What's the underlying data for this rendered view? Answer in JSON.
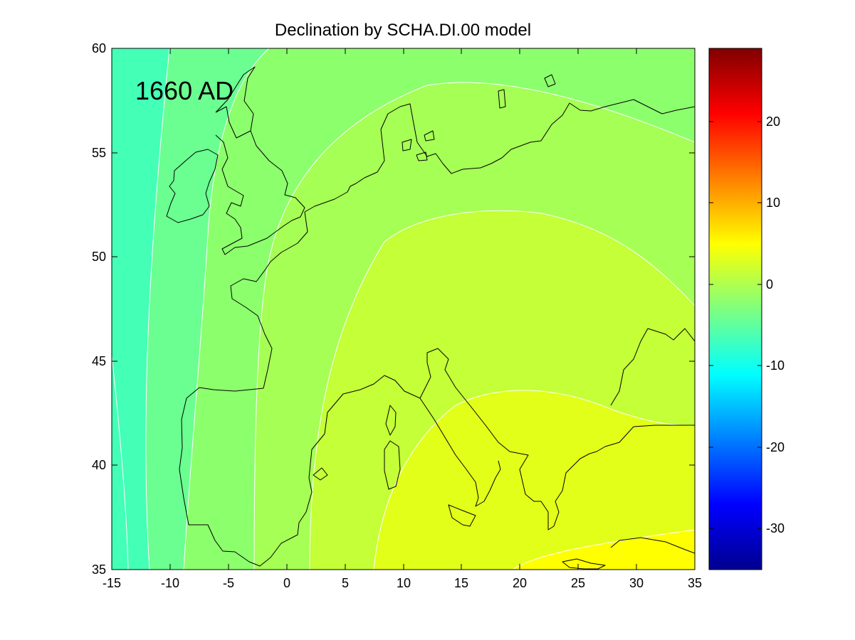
{
  "chart_data": {
    "type": "heatmap",
    "title": "Declination by SCHA.DI.00 model",
    "annotation": "1660 AD",
    "xlabel": "",
    "ylabel": "",
    "xlim": [
      -15,
      35
    ],
    "ylim": [
      35,
      60
    ],
    "x_ticks": [
      "-15",
      "-10",
      "-5",
      "0",
      "5",
      "10",
      "15",
      "20",
      "25",
      "30",
      "35"
    ],
    "y_ticks": [
      "35",
      "40",
      "45",
      "50",
      "55",
      "60"
    ],
    "colorbar": {
      "range": [
        -35,
        29
      ],
      "ticks": [
        "20",
        "10",
        "0",
        "-10",
        "-20",
        "-30"
      ],
      "colormap": "jet"
    },
    "contour_levels": [
      -8,
      -6,
      -4,
      -2,
      0,
      2,
      4,
      6
    ],
    "contour_line_color": "#ffffff",
    "coastline_color": "#000000",
    "zone_colors": [
      "#44ffb6",
      "#6bff91",
      "#8cff6d",
      "#a6ff55",
      "#c4ff37",
      "#e2ff1a",
      "#ffff00",
      "#ffdb00"
    ],
    "grid": false,
    "legend": "none"
  }
}
